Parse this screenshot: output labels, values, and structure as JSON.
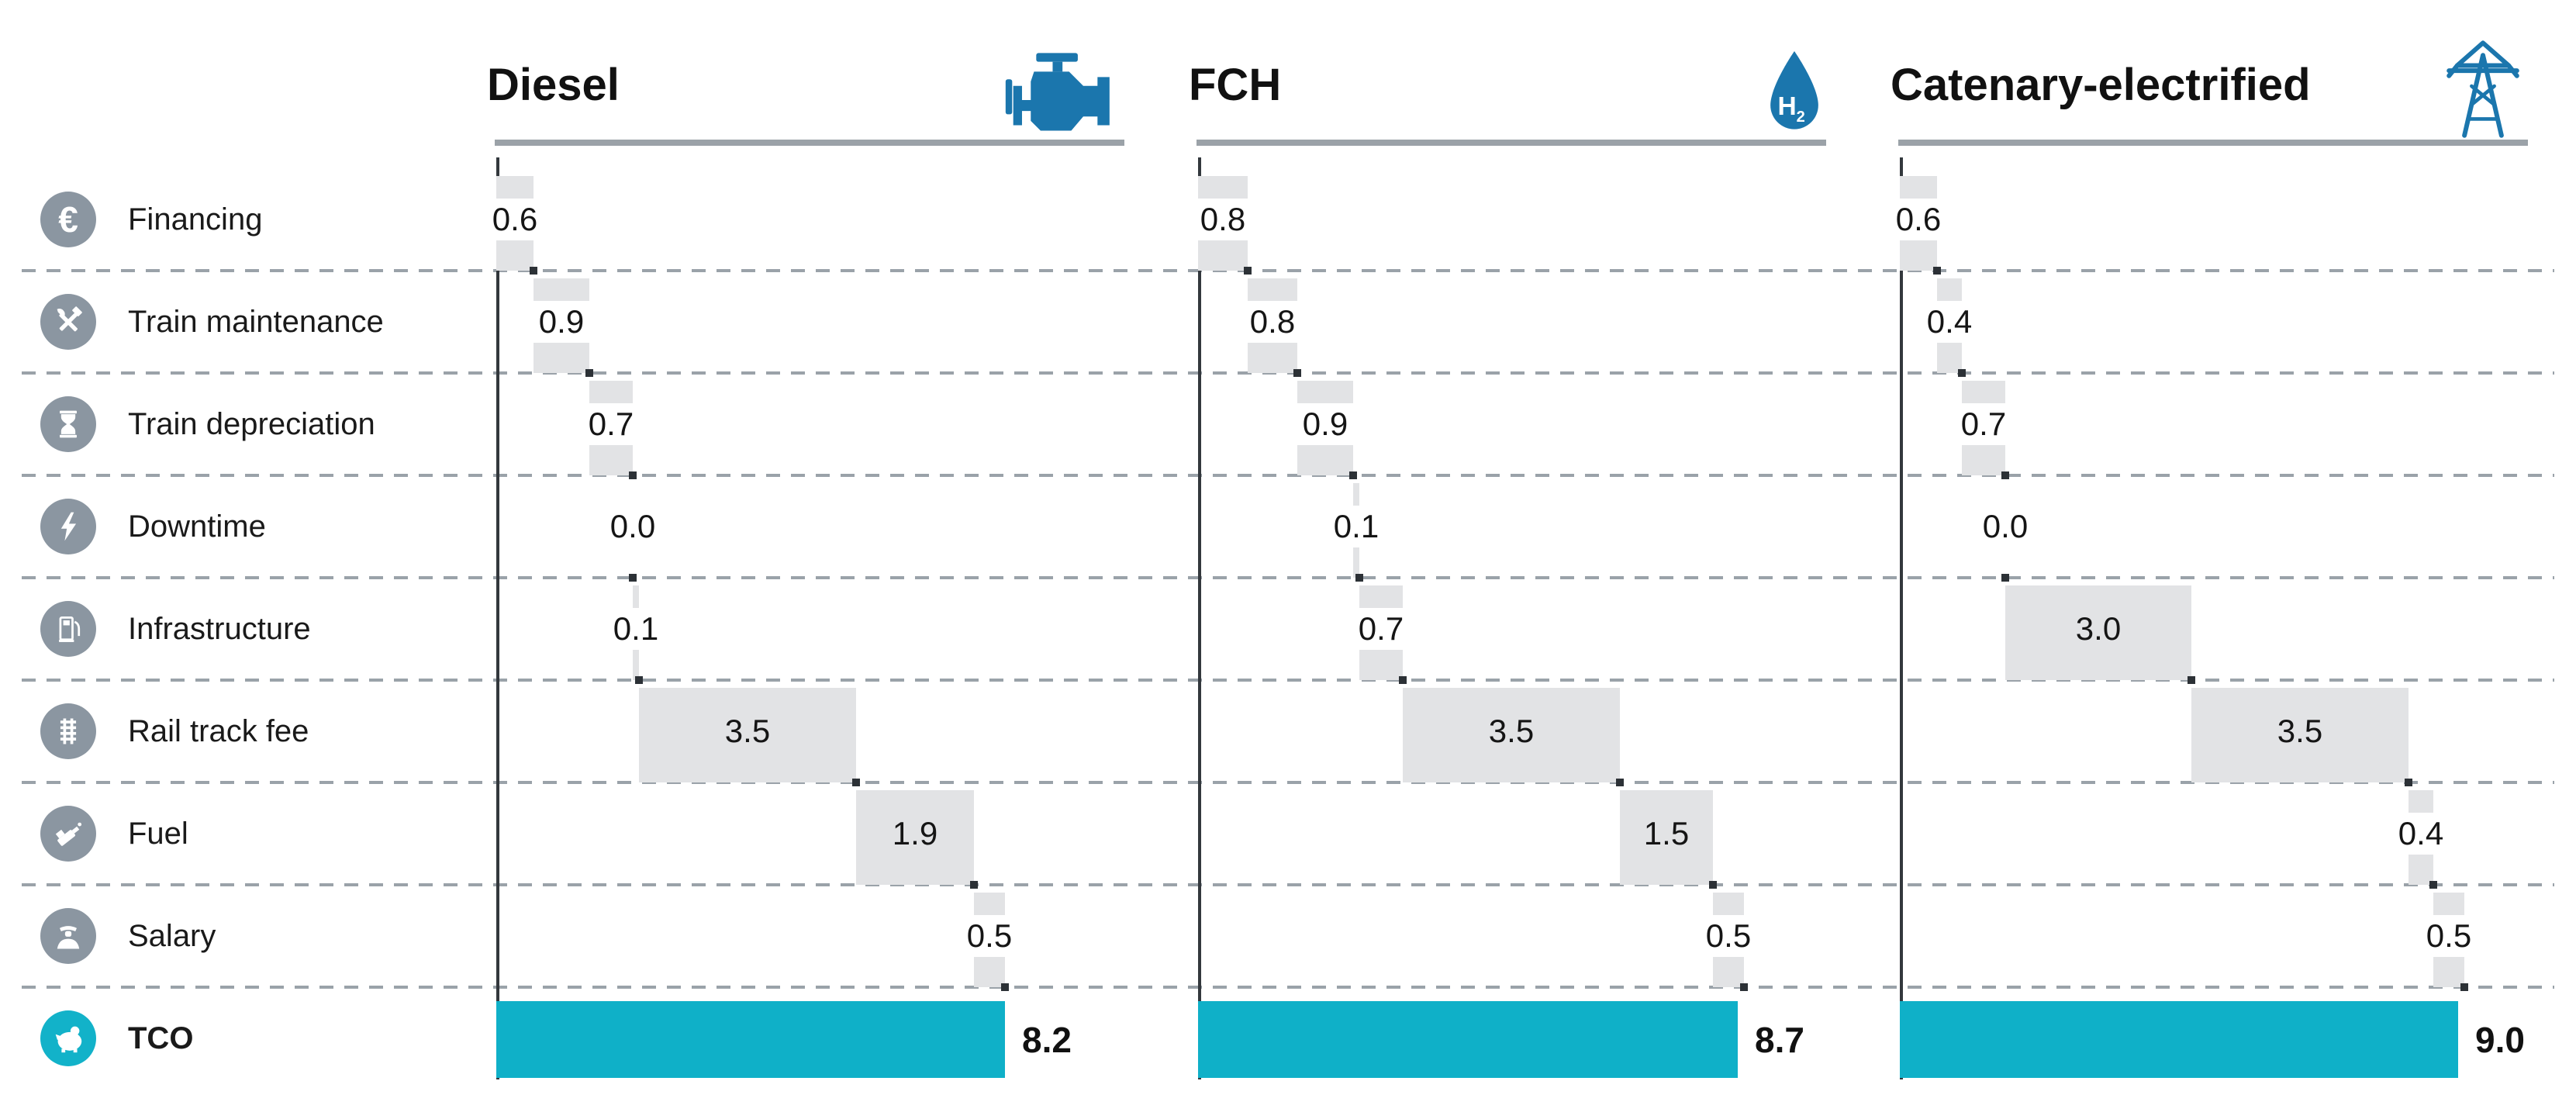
{
  "header": {
    "columns": [
      {
        "label": "Diesel",
        "icon": "diesel-engine-icon"
      },
      {
        "label": "FCH",
        "icon": "hydrogen-droplet-icon",
        "droplet_text": "H",
        "droplet_sub": "2"
      },
      {
        "label": "Catenary-electrified",
        "icon": "catenary-tower-icon"
      }
    ]
  },
  "legend": {
    "items": [
      {
        "label": "Financing",
        "icon": "euro-icon",
        "glyph": "€"
      },
      {
        "label": "Train maintenance",
        "icon": "tools-icon"
      },
      {
        "label": "Train depreciation",
        "icon": "hourglass-icon"
      },
      {
        "label": "Downtime",
        "icon": "lightning-icon"
      },
      {
        "label": "Infrastructure",
        "icon": "fuel-pump-icon"
      },
      {
        "label": "Rail track fee",
        "icon": "rail-track-icon"
      },
      {
        "label": "Fuel",
        "icon": "fuel-nozzle-icon"
      },
      {
        "label": "Salary",
        "icon": "conductor-icon"
      }
    ],
    "total_item": {
      "label": "TCO",
      "icon": "piggy-bank-icon"
    }
  },
  "chart_data": {
    "type": "bar",
    "subtype": "waterfall",
    "orientation": "horizontal",
    "categories": [
      "Financing",
      "Train maintenance",
      "Train depreciation",
      "Downtime",
      "Infrastructure",
      "Rail track fee",
      "Fuel",
      "Salary"
    ],
    "total_category": "TCO",
    "series": [
      {
        "name": "Diesel",
        "values": [
          0.6,
          0.9,
          0.7,
          0.0,
          0.1,
          3.5,
          1.9,
          0.5
        ],
        "total": 8.2
      },
      {
        "name": "FCH",
        "values": [
          0.8,
          0.8,
          0.9,
          0.1,
          0.7,
          3.5,
          1.5,
          0.5
        ],
        "total": 8.7
      },
      {
        "name": "Catenary-electrified",
        "values": [
          0.6,
          0.4,
          0.7,
          0.0,
          3.0,
          3.5,
          0.4,
          0.5
        ],
        "total": 9.0
      }
    ],
    "value_labels_decimals": 1,
    "grid": "dashed-horizontal-row-separators",
    "legend_position": "left",
    "colors": {
      "segment_bar": "#e2e3e5",
      "total_bar": "#0fb0c8",
      "axis": "#33383d",
      "separator": "#9aa2a9",
      "legend_circle": "#8b96a1",
      "legend_total_circle": "#12b2c9",
      "header_icon": "#1b76ad",
      "underline": "#9ba2a8",
      "tick": "#2c3136",
      "text": "#1a1a1a"
    }
  }
}
